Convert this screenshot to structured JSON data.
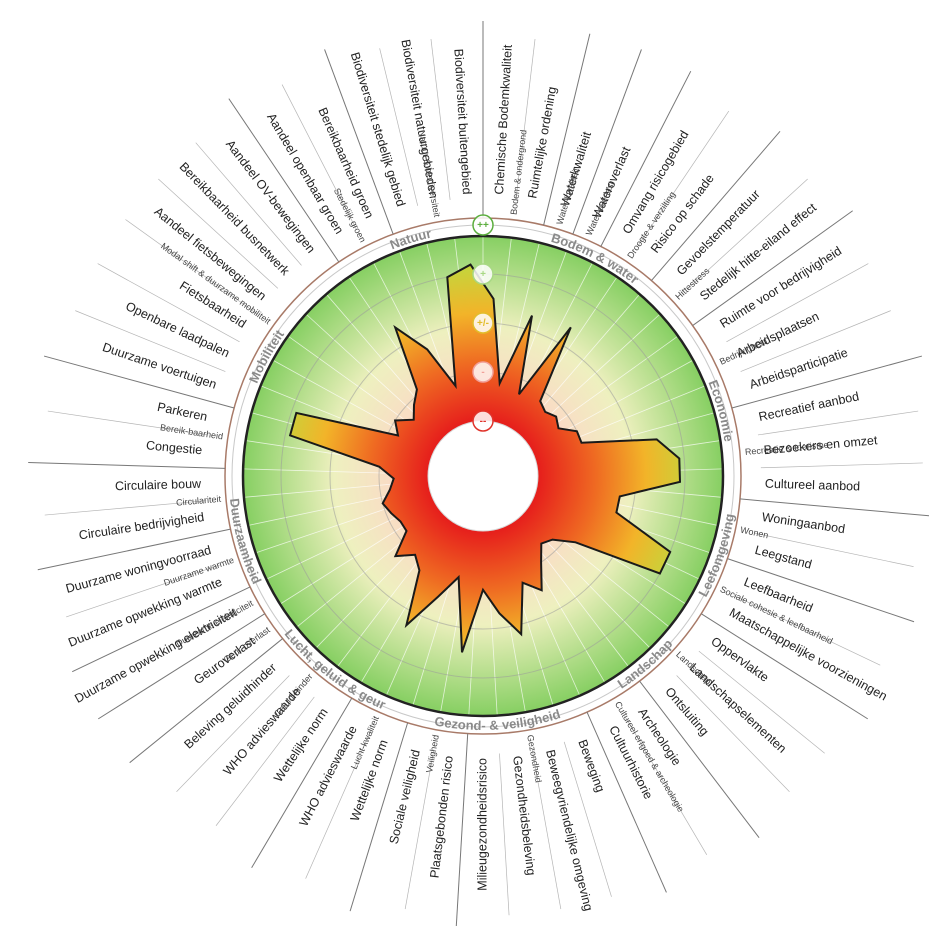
{
  "chart_data": {
    "type": "radar",
    "ylim": [
      -2,
      2
    ],
    "yticks": [
      {
        "value": -2,
        "label": "--"
      },
      {
        "value": -1,
        "label": "-"
      },
      {
        "value": 0,
        "label": "+/-"
      },
      {
        "value": 1,
        "label": "+"
      },
      {
        "value": 2,
        "label": "++"
      }
    ],
    "ring_colors": [
      "#e0332b",
      "#f2a09a",
      "#e2bd2c",
      "#a8d884",
      "#5cae3e"
    ],
    "themes": [
      {
        "name": "Bodem & water",
        "subthemes": [
          {
            "name": "Bodem & ondergrond",
            "categories": [
              "Chemische Bodemkwaliteit",
              "Ruimtelijke ordening"
            ],
            "values": [
              0.5,
              -1.2
            ]
          },
          {
            "name": "Water-kwaliteit",
            "categories": [
              "Waterkwaliteit"
            ],
            "values": [
              0.3
            ]
          },
          {
            "name": "Water-overlast",
            "categories": [
              "Wateroverlast"
            ],
            "values": [
              -1.3
            ]
          },
          {
            "name": "Droogte & verzilting",
            "categories": [
              "Omvang risicogebied",
              "Risico op schade"
            ],
            "values": [
              0.4,
              -1.2
            ]
          },
          {
            "name": "Hittestress",
            "categories": [
              "Gevoelstemperatuur",
              "Stedelijk hitte-eiland effect"
            ],
            "values": [
              -1.3,
              -1.2
            ]
          }
        ]
      },
      {
        "name": "Economie",
        "subthemes": [
          {
            "name": "Bedrijvigheid",
            "categories": [
              "Ruimte voor bedrijvigheid",
              "Arbeidsplaatsen",
              "Arbeidsparticipatie"
            ],
            "values": [
              -1.3,
              -1.0,
              -1.0
            ]
          },
          {
            "name": "Recreatie & toerisme",
            "categories": [
              "Recreatief aanbod",
              "Bezoekers en omzet",
              "Cultureel aanbod"
            ],
            "values": [
              0.5,
              0.9,
              0.9
            ]
          }
        ]
      },
      {
        "name": "Leefomgeving",
        "subthemes": [
          {
            "name": "Wonen",
            "categories": [
              "Woningaanbod",
              "Leegstand"
            ],
            "values": [
              -0.3,
              -0.3
            ]
          },
          {
            "name": "Sociale cohesie & leefbaarheid",
            "categories": [
              "Leefbaarheid",
              "Maatschappelijke voorzieningen"
            ],
            "values": [
              1.0,
              1.0
            ]
          }
        ]
      },
      {
        "name": "Landschap",
        "subthemes": [
          {
            "name": "Landschap",
            "categories": [
              "Oppervlakte",
              "Landschapselementen",
              "Ontsluiting"
            ],
            "values": [
              -0.8,
              -1.2,
              -1.3
            ]
          },
          {
            "name": "Cultureel erfgoed & archeologie",
            "categories": [
              "Archeologie",
              "Cultuurhistorie"
            ],
            "values": [
              -1.0,
              -0.5
            ]
          }
        ]
      },
      {
        "name": "Gezond- & veiligheid",
        "subthemes": [
          {
            "name": "Gezondheid",
            "categories": [
              "Beweging",
              "Beweegvriendelijke omgeving",
              "Gezondheidsbeleving",
              "Milieugezondheidsrisico"
            ],
            "values": [
              -0.8,
              0.2,
              -0.3,
              -0.8
            ]
          },
          {
            "name": "Veiligheid",
            "categories": [
              "Plaatsgebonden risico",
              "Sociale veiligheid"
            ],
            "values": [
              0.5,
              -1.0
            ]
          }
        ]
      },
      {
        "name": "Lucht, geluid & geur",
        "subthemes": [
          {
            "name": "Lucht-kwaliteit",
            "categories": [
              "Wettelijke norm",
              "WHO advieswaarde"
            ],
            "values": [
              -0.5,
              0.3
            ]
          },
          {
            "name": "Geluid-hinder",
            "categories": [
              "Wettelijke norm",
              "WHO advieswaarde",
              "Beleving geluidhinder"
            ],
            "values": [
              -0.8,
              -1.0,
              -0.7
            ]
          },
          {
            "name": "Geur-overlast",
            "categories": [
              "Geuroverlast"
            ],
            "values": [
              -1.2
            ]
          }
        ]
      },
      {
        "name": "Duurzaamheid",
        "subthemes": [
          {
            "name": "Duurzame elektriciteit",
            "categories": [
              "Duurzame opwekking elektriciteit"
            ],
            "values": [
              -1.2
            ]
          },
          {
            "name": "Duurzame warmte",
            "categories": [
              "Duurzame opwekking warmte",
              "Duurzame woningvoorraad"
            ],
            "values": [
              -1.1,
              -1.0
            ]
          },
          {
            "name": "Circulariteit",
            "categories": [
              "Circulaire bedrijvigheid",
              "Circulaire bouw"
            ],
            "values": [
              -1.2,
              -1.3
            ]
          }
        ]
      },
      {
        "name": "Mobiliteit",
        "subthemes": [
          {
            "name": "Bereik-baarheid",
            "categories": [
              "Congestie",
              "Parkeren"
            ],
            "values": [
              -1.0,
              0.9
            ]
          },
          {
            "name": "Modal shift & duurzame mobiliteit",
            "categories": [
              "Duurzame voertuigen",
              "Openbare laadpalen",
              "Fietsbaarheid",
              "Aandeel fietsbewegingen",
              "Bereikbaarheid busnetwerk",
              "Aandeel OV-bewegingen"
            ],
            "values": [
              0.9,
              -1.2,
              -1.0,
              -1.3,
              -1.1,
              -0.9
            ]
          }
        ]
      },
      {
        "name": "Natuur",
        "subthemes": [
          {
            "name": "Stedelijk groen",
            "categories": [
              "Aandeel openbaar groen",
              "Bereikbaarheid groen"
            ],
            "values": [
              0.4,
              -0.3
            ]
          },
          {
            "name": "Natuur & biodiversiteit",
            "categories": [
              "Biodiversiteit stedelijk gebied",
              "Biodiversiteit natuurgebieden",
              "Biodiversiteit buitengebied"
            ],
            "values": [
              -1.2,
              1.0,
              1.2
            ]
          }
        ]
      }
    ]
  }
}
